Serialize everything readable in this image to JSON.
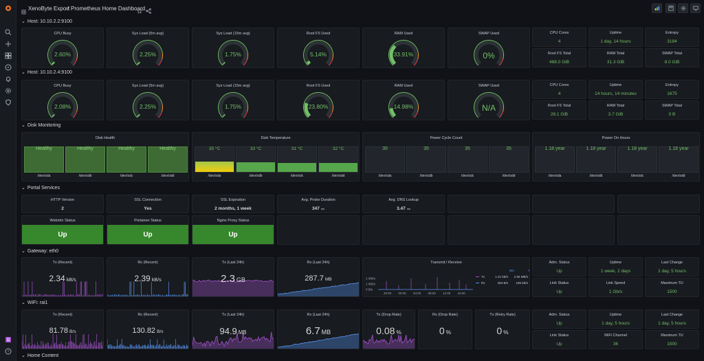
{
  "app": {
    "breadcrumb_folder": "XenoByte Export",
    "breadcrumb_sep": "/",
    "dashboard_title": "Prometheus Home Dashboard"
  },
  "colors": {
    "green": "#73bf69",
    "panel_bg": "#181b1f",
    "up_green": "#37872d",
    "purple": "#a352cc",
    "blue": "#5794f2",
    "yellow": "#fade2a"
  },
  "rows": {
    "host1": "Host: 10.10.2.2:9100",
    "host2": "Host: 10.10.2.4:9100",
    "disk": "Disk Monitoring",
    "portal": "Portal Services",
    "gateway": "Gateway: eth0",
    "wifi": "WiFi: rai1",
    "home": "Home Content"
  },
  "host1": {
    "gauges": [
      {
        "title": "CPU Busy",
        "value": "2.60%",
        "pct": 2.6
      },
      {
        "title": "Sys Load (5m avg)",
        "value": "2.25%",
        "pct": 2.25
      },
      {
        "title": "Sys Load (15m avg)",
        "value": "1.75%",
        "pct": 1.75
      },
      {
        "title": "Root FS Used",
        "value": "5.14%",
        "pct": 5.14
      },
      {
        "title": "RAM Used",
        "value": "33.91%",
        "pct": 33.91
      },
      {
        "title": "SWAP Used",
        "value": "0%",
        "pct": 0
      }
    ],
    "stats": [
      {
        "title": "CPU Cores",
        "value": "4"
      },
      {
        "title": "Uptime",
        "value": "1 day, 14 hours"
      },
      {
        "title": "Entropy",
        "value": "3184"
      },
      {
        "title": "Root FS Total",
        "value": "468.0 GiB"
      },
      {
        "title": "RAM Total",
        "value": "31.3 GiB"
      },
      {
        "title": "SWAP Total",
        "value": "8.0 GiB"
      }
    ]
  },
  "host2": {
    "gauges": [
      {
        "title": "CPU Busy",
        "value": "2.08%",
        "pct": 2.08
      },
      {
        "title": "Sys Load (5m avg)",
        "value": "2.25%",
        "pct": 2.25
      },
      {
        "title": "Sys Load (15m avg)",
        "value": "1.75%",
        "pct": 1.75
      },
      {
        "title": "Root FS Used",
        "value": "23.80%",
        "pct": 23.8
      },
      {
        "title": "RAM Used",
        "value": "14.98%",
        "pct": 14.98
      },
      {
        "title": "SWAP Used",
        "value": "N/A",
        "pct": 0
      }
    ],
    "stats": [
      {
        "title": "CPU Cores",
        "value": "4"
      },
      {
        "title": "Uptime",
        "value": "14 hours, 14 minutes"
      },
      {
        "title": "Entropy",
        "value": "1675"
      },
      {
        "title": "Root FS Total",
        "value": "28.1 GiB"
      },
      {
        "title": "RAM Total",
        "value": "3.7 GiB"
      },
      {
        "title": "SWAP Total",
        "value": "0 B"
      }
    ]
  },
  "disk": {
    "devices": [
      "/dev/sda",
      "/dev/sdb",
      "/dev/sdc",
      "/dev/sdd"
    ],
    "health": {
      "title": "Disk Health",
      "values": [
        "Healthy",
        "Healthy",
        "Healthy",
        "Healthy"
      ]
    },
    "temp": {
      "title": "Disk Temperature",
      "values": [
        "35 °C",
        "33 °C",
        "31 °C",
        "32 °C"
      ],
      "levels": [
        35,
        33,
        31,
        32
      ]
    },
    "cycles": {
      "title": "Power Cycle Count",
      "values": [
        "35",
        "35",
        "35",
        "35"
      ]
    },
    "hours": {
      "title": "Power On Hours",
      "values": [
        "1.18 year",
        "1.18 year",
        "1.18 year",
        "1.18 year"
      ]
    }
  },
  "portal": {
    "stats": [
      {
        "title": "HTTP Version",
        "value": "2"
      },
      {
        "title": "SSL Connection",
        "value": "Yes"
      },
      {
        "title": "SSL Expiration",
        "value": "2 months, 1 week"
      },
      {
        "title": "Avg. Probe Duration",
        "value": "347",
        "unit": "ms"
      },
      {
        "title": "Avg. DNS Lookup",
        "value": "3.47",
        "unit": "ms"
      }
    ],
    "status": [
      {
        "title": "Webmin Status",
        "value": "Up"
      },
      {
        "title": "Portainer Status",
        "value": "Up"
      },
      {
        "title": "Nginx Proxy Status",
        "value": "Up"
      }
    ]
  },
  "gateway": {
    "tx_recent": {
      "title": "Tx (Recent)",
      "value": "2.34",
      "unit": "kB/s"
    },
    "rx_recent": {
      "title": "Rx (Recent)",
      "value": "2.39",
      "unit": "kB/s"
    },
    "tx_24h": {
      "title": "Tx (Last 24h)",
      "value": "2.3",
      "unit": "GB"
    },
    "rx_24h": {
      "title": "Rx (Last 24h)",
      "value": "287.7",
      "unit": "MB"
    },
    "chart": {
      "title": "Transmit / Receive",
      "yticks": [
        "2 MB/s",
        "1 MB/s",
        "0 B/s"
      ],
      "xticks": [
        "20:00",
        "00:00",
        "04:00",
        "08:00",
        "12:00",
        "16:00"
      ],
      "legend_headers": [
        "Min",
        "Max"
      ],
      "legend": [
        {
          "name": "Tx",
          "min": "1.21 kB/s",
          "max": "2.66 MB/s"
        },
        {
          "name": "Rx",
          "min": "484 B/s",
          "max": "185 kB/s"
        }
      ]
    },
    "stats": [
      {
        "title": "Adm. Status",
        "value": "Up"
      },
      {
        "title": "Uptime",
        "value": "1 week, 2 days"
      },
      {
        "title": "Last Change",
        "value": "1 day, 5 hours"
      },
      {
        "title": "Link Status",
        "value": "Up"
      },
      {
        "title": "Link Speed",
        "value": "1 Gb/s"
      },
      {
        "title": "Maximum TU",
        "value": "1500"
      }
    ]
  },
  "wifi": {
    "tx_recent": {
      "title": "Tx (Recent)",
      "value": "81.78",
      "unit": "B/s"
    },
    "rx_recent": {
      "title": "Rx (Recent)",
      "value": "130.82",
      "unit": "B/s"
    },
    "tx_24h": {
      "title": "Tx (Last 24h)",
      "value": "94.9",
      "unit": "MB"
    },
    "rx_24h": {
      "title": "Rx (Last 24h)",
      "value": "6.7",
      "unit": "MB"
    },
    "tx_drop": {
      "title": "Tx (Drop Rate)",
      "value": "0.08",
      "unit": "%"
    },
    "rx_drop": {
      "title": "Rx (Drop Rate)",
      "value": "0",
      "unit": "%"
    },
    "tx_retry": {
      "title": "Tx (Retry Rate)",
      "value": "0",
      "unit": "%"
    },
    "stats": [
      {
        "title": "Adm. Status",
        "value": "Up"
      },
      {
        "title": "Uptime",
        "value": "1 day, 5 hours"
      },
      {
        "title": "Last Change",
        "value": "1 day, 5 hours"
      },
      {
        "title": "Link Status",
        "value": "Up"
      },
      {
        "title": "WiFi Channel",
        "value": "36"
      },
      {
        "title": "Maximum TU",
        "value": "1500"
      }
    ]
  }
}
